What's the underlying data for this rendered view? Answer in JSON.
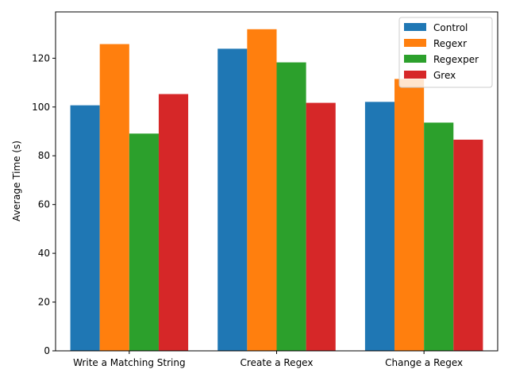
{
  "chart_data": {
    "type": "bar",
    "title": "",
    "xlabel": "",
    "ylabel": "Average Time (s)",
    "ylim": [
      0,
      139
    ],
    "yticks": [
      0,
      20,
      40,
      60,
      80,
      100,
      120
    ],
    "categories": [
      "Write a Matching String",
      "Create a Regex",
      "Change a Regex"
    ],
    "series": [
      {
        "name": "Control",
        "color": "#1f77b4",
        "values": [
          100.7,
          123.9,
          102.1
        ]
      },
      {
        "name": "Regexr",
        "color": "#ff7f0e",
        "values": [
          125.8,
          131.9,
          111.5
        ]
      },
      {
        "name": "Regexper",
        "color": "#2ca02c",
        "values": [
          89.1,
          118.3,
          93.6
        ]
      },
      {
        "name": "Grex",
        "color": "#d62728",
        "values": [
          105.3,
          101.7,
          86.6
        ]
      }
    ],
    "legend_position": "top-right",
    "grid": false
  }
}
